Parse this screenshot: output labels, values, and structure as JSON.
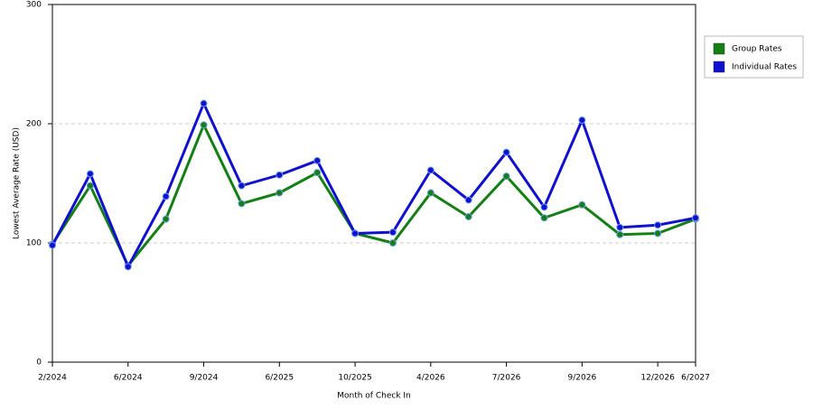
{
  "chart_data": {
    "type": "line",
    "x_label": "Month of Check In",
    "y_label": "Lowest Average Rate (USD)",
    "categories": [
      "2/2024",
      null,
      "6/2024",
      null,
      "9/2024",
      null,
      "6/2025",
      null,
      "10/2025",
      null,
      "4/2026",
      null,
      "7/2026",
      null,
      "9/2026",
      null,
      "12/2026",
      "6/2027"
    ],
    "series": [
      {
        "name": "Group Rates",
        "color": "#138013",
        "values": [
          99,
          148,
          81,
          120,
          199,
          133,
          142,
          159,
          108,
          100,
          142,
          122,
          156,
          121,
          132,
          107,
          108,
          120
        ]
      },
      {
        "name": "Individual Rates",
        "color": "#1010d0",
        "values": [
          98,
          158,
          80,
          139,
          217,
          148,
          157,
          169,
          108,
          109,
          161,
          136,
          176,
          130,
          203,
          113,
          115,
          121
        ]
      }
    ],
    "ylim": [
      0,
      300
    ],
    "yticks": [
      0,
      100,
      200,
      300
    ],
    "grid": true,
    "legend": "right"
  }
}
